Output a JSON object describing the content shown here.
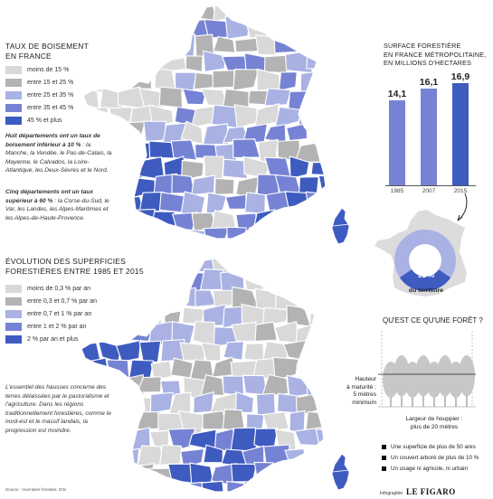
{
  "colors": {
    "c1": "#d9d9d9",
    "c2": "#b3b3b3",
    "c3": "#a9b2e3",
    "c4": "#7683d4",
    "c5": "#3e5bc0",
    "dark": "#3f5fbf"
  },
  "map1": {
    "title_line1": "TAUX DE BOISEMENT",
    "title_line2": "EN FRANCE",
    "legend": [
      {
        "label": "moins de 15 %",
        "color_key": "c1"
      },
      {
        "label": "entre 15 et 25 %",
        "color_key": "c2"
      },
      {
        "label": "entre 25 et 35 %",
        "color_key": "c3"
      },
      {
        "label": "entre 35 et 45 %",
        "color_key": "c4"
      },
      {
        "label": "45 % et plus",
        "color_key": "c5"
      }
    ],
    "note1_bold": "Huit départements ont un taux de boisement inférieur à 10 %",
    "note1_rest": " : la Manche, la Vendée, le Pas-de-Calais, la Mayenne, le Calvados, la Loire-Atlantique, les Deux-Sèvres et le Nord.",
    "note2_bold": "Cinq départements ont un taux supérieur à 60 %",
    "note2_rest": " : la Corse-du-Sud, le Var, les Landes, les Alpes-Maritimes et les Alpes-de-Haute-Provence."
  },
  "map2": {
    "title_line1": "ÉVOLUTION DES SUPERFICIES",
    "title_line2": "FORESTIÈRES ENTRE 1985 ET 2015",
    "legend": [
      {
        "label": "moins de 0,3 % par an",
        "color_key": "c1"
      },
      {
        "label": "entre 0,3 et 0,7 % par an",
        "color_key": "c2"
      },
      {
        "label": "entre 0,7 et 1 % par an",
        "color_key": "c3"
      },
      {
        "label": "entre 1 et 2 % par an",
        "color_key": "c4"
      },
      {
        "label": "2 % par an et plus",
        "color_key": "c5"
      }
    ],
    "note": "L'essentiel des hausses concerne des terres délaissées par le pastoralisme et l'agriculture. Dans les régions traditionnellement forestières, comme le nord-est et le massif landais, la progression est moindre.",
    "source": "Source : Inventaire forestier, IGN"
  },
  "surface": {
    "title_line1": "SURFACE FORESTIÈRE",
    "title_line2": "EN FRANCE MÉTROPOLITAINE,",
    "title_line3": "EN MILLIONS D'HECTARES",
    "bars": [
      {
        "year": "1985",
        "value": 14.1,
        "label": "14,1"
      },
      {
        "year": "2007",
        "value": 16.1,
        "label": "16,1"
      },
      {
        "year": "2015",
        "value": 16.9,
        "label": "16,9"
      }
    ],
    "pie_label": "31 %",
    "pie_caption": "du territoire",
    "pie_share": 31
  },
  "foret": {
    "title": "QU'EST CE QU'UNE FORÊT ?",
    "height_label_1": "Hauteur",
    "height_label_2": "à maturité :",
    "height_label_3": "5 mètres",
    "height_label_4": "minimum",
    "width_label_1": "Largeur de houppier :",
    "width_label_2": "plus de 20 mètres",
    "criteria": [
      "Une superficie de plus de 50 ares",
      "Un couvert arboré de plus de 10 %",
      "Un usage ni agricole, ni urbain"
    ]
  },
  "credit_small": "Infographie",
  "credit_brand": "LE FIGARO"
}
